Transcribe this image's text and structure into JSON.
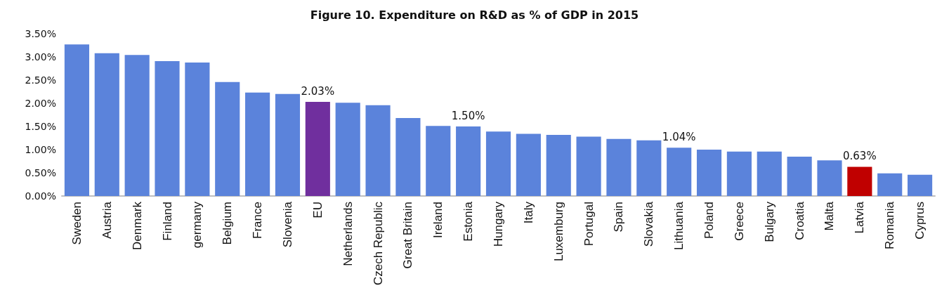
{
  "chart_data": {
    "type": "bar",
    "title": "Figure 10. Expenditure on R&D as % of GDP in 2015",
    "categories": [
      "Sweden",
      "Austria",
      "Denmark",
      "Finland",
      "germany",
      "Belgium",
      "France",
      "Slovenia",
      "EU",
      "Netherlands",
      "Czech Republic",
      "Great Britain",
      "Ireland",
      "Estonia",
      "Hungary",
      "Italy",
      "Luxemburg",
      "Portugal",
      "Spain",
      "Slovakia",
      "Lithuania",
      "Poland",
      "Greece",
      "Bulgary",
      "Croatia",
      "Malta",
      "Latvia",
      "Romania",
      "Cyprus"
    ],
    "values": [
      3.27,
      3.08,
      3.04,
      2.91,
      2.88,
      2.46,
      2.23,
      2.2,
      2.03,
      2.01,
      1.96,
      1.68,
      1.51,
      1.5,
      1.39,
      1.34,
      1.32,
      1.28,
      1.23,
      1.2,
      1.04,
      1.0,
      0.96,
      0.96,
      0.85,
      0.77,
      0.63,
      0.49,
      0.46
    ],
    "colors": [
      "#5b83db",
      "#5b83db",
      "#5b83db",
      "#5b83db",
      "#5b83db",
      "#5b83db",
      "#5b83db",
      "#5b83db",
      "#702f9e",
      "#5b83db",
      "#5b83db",
      "#5b83db",
      "#5b83db",
      "#5b83db",
      "#5b83db",
      "#5b83db",
      "#5b83db",
      "#5b83db",
      "#5b83db",
      "#5b83db",
      "#5b83db",
      "#5b83db",
      "#5b83db",
      "#5b83db",
      "#5b83db",
      "#5b83db",
      "#c00000",
      "#5b83db",
      "#5b83db"
    ],
    "value_labels": [
      null,
      null,
      null,
      null,
      null,
      null,
      null,
      null,
      "2.03%",
      null,
      null,
      null,
      null,
      "1.50%",
      null,
      null,
      null,
      null,
      null,
      null,
      "1.04%",
      null,
      null,
      null,
      null,
      null,
      "0.63%",
      null,
      null
    ],
    "ylim": [
      0,
      3.5
    ],
    "yticks": [
      {
        "value": 0,
        "label": "0.00%"
      },
      {
        "value": 0.5,
        "label": "0.50%"
      },
      {
        "value": 1,
        "label": "1.00%"
      },
      {
        "value": 1.5,
        "label": "1.50%"
      },
      {
        "value": 2,
        "label": "2.00%"
      },
      {
        "value": 2.5,
        "label": "2.50%"
      },
      {
        "value": 3,
        "label": "3.00%"
      },
      {
        "value": 3.5,
        "label": "3.50%"
      }
    ],
    "grid": false
  }
}
